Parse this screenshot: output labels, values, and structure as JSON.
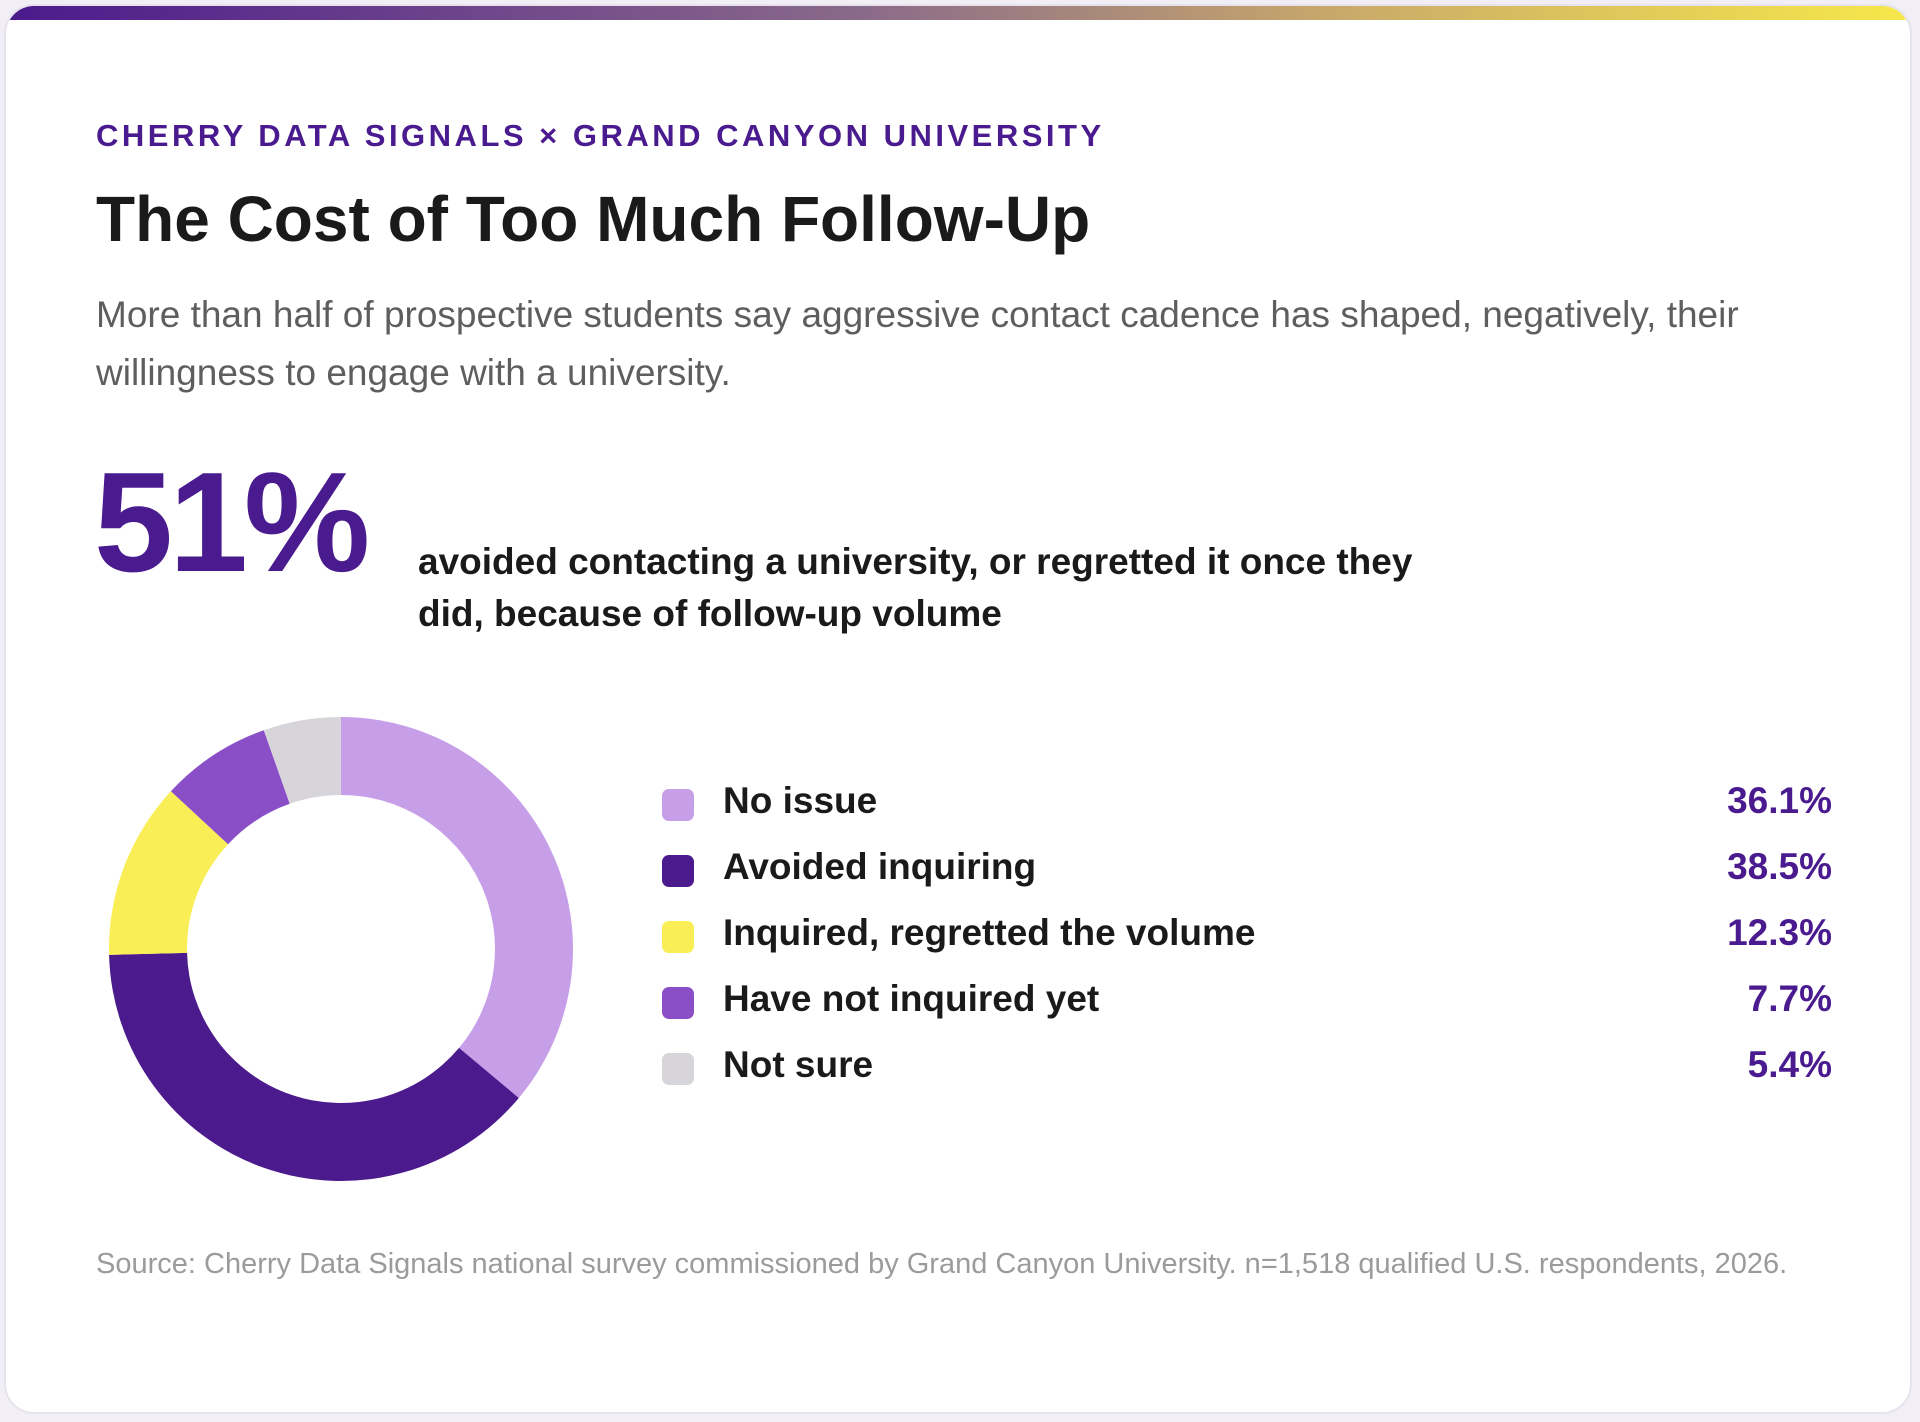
{
  "header": {
    "eyebrow": "CHERRY DATA SIGNALS × GRAND CANYON UNIVERSITY",
    "title": "The Cost of Too Much Follow-Up",
    "subtitle": "More than half of prospective students say aggressive contact cadence has shaped, negatively, their willingness to engage with a university."
  },
  "highlight": {
    "value": "51%",
    "caption": "avoided contacting a university, or regretted it once they did, because of follow-up volume"
  },
  "chart_data": {
    "type": "pie",
    "donut": true,
    "title": "",
    "legend_position": "right",
    "categories": [
      "No issue",
      "Avoided inquiring",
      "Inquired, regretted the volume",
      "Have not inquired yet",
      "Not sure"
    ],
    "values": [
      36.1,
      38.5,
      12.3,
      7.7,
      5.4
    ],
    "value_labels": [
      "36.1%",
      "38.5%",
      "12.3%",
      "7.7%",
      "5.4%"
    ],
    "colors": [
      "#c79ee8",
      "#4b1a8c",
      "#f9ee55",
      "#8a4ec7",
      "#d7d4da"
    ]
  },
  "footer": {
    "source": "Source: Cherry Data Signals national survey commissioned by Grand Canyon University. n=1,518 qualified U.S. respondents, 2026."
  },
  "colors": {
    "accent": "#4b1a8c",
    "accent_text": "#4a1a8f",
    "gradient_start": "#4b1a8c",
    "gradient_end": "#f7e84a"
  }
}
